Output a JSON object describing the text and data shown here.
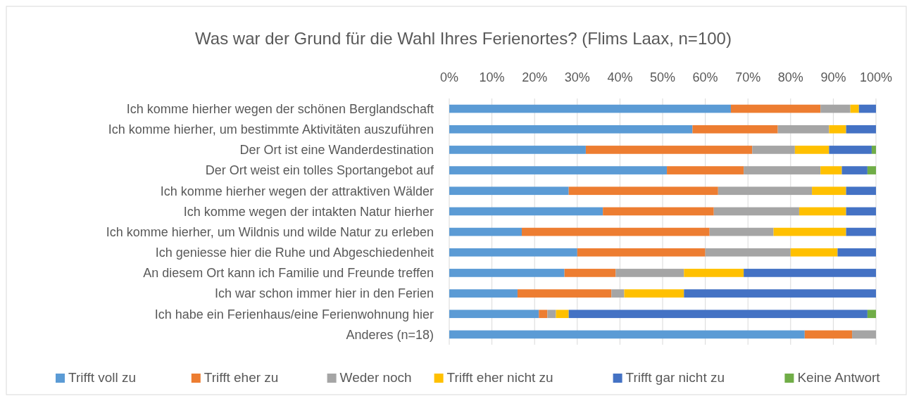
{
  "chart_data": {
    "type": "bar",
    "orientation": "horizontal",
    "stacked": true,
    "title": "Was war der Grund für die Wahl Ihres Ferienortes? (Flims Laax, n=100)",
    "categories": [
      "Ich komme hierher wegen der schönen Berglandschaft",
      "Ich komme hierher, um bestimmte Aktivitäten auszuführen",
      "Der Ort ist eine Wanderdestination",
      "Der Ort weist ein tolles Sportangebot auf",
      "Ich komme hierher wegen der attraktiven Wälder",
      "Ich komme wegen der intakten Natur hierher",
      "Ich komme hierher, um Wildnis und wilde Natur zu erleben",
      "Ich geniesse hier die Ruhe und Abgeschiedenheit",
      "An diesem Ort kann ich Familie und Freunde treffen",
      "Ich war schon immer hier in den Ferien",
      "Ich habe ein Ferienhaus/eine Ferienwohnung hier",
      "Anderes (n=18)"
    ],
    "series": [
      {
        "name": "Trifft voll zu",
        "color": "#5b9bd5",
        "values": [
          66,
          57,
          32,
          51,
          28,
          36,
          17,
          30,
          27,
          16,
          21,
          83.3
        ]
      },
      {
        "name": "Trifft eher zu",
        "color": "#ed7d31",
        "values": [
          21,
          20,
          39,
          18,
          35,
          26,
          44,
          30,
          12,
          22,
          2,
          11.1
        ]
      },
      {
        "name": "Weder noch",
        "color": "#a5a5a5",
        "values": [
          7,
          12,
          10,
          18,
          22,
          20,
          15,
          20,
          16,
          3,
          2,
          5.6
        ]
      },
      {
        "name": "Trifft eher nicht zu",
        "color": "#ffc000",
        "values": [
          2,
          4,
          8,
          5,
          8,
          11,
          17,
          11,
          14,
          14,
          3,
          0
        ]
      },
      {
        "name": "Trifft gar nicht zu",
        "color": "#4472c4",
        "values": [
          4,
          7,
          10,
          6,
          7,
          7,
          7,
          9,
          31,
          45,
          70,
          0
        ]
      },
      {
        "name": "Keine Antwort",
        "color": "#70ad47",
        "values": [
          0,
          0,
          1,
          2,
          0,
          0,
          0,
          0,
          0,
          0,
          2,
          0
        ]
      }
    ],
    "xlim": [
      0,
      100
    ],
    "xticks": [
      {
        "value": 0,
        "label": "0%"
      },
      {
        "value": 10,
        "label": "10%"
      },
      {
        "value": 20,
        "label": "20%"
      },
      {
        "value": 30,
        "label": "30%"
      },
      {
        "value": 40,
        "label": "40%"
      },
      {
        "value": 50,
        "label": "50%"
      },
      {
        "value": 60,
        "label": "60%"
      },
      {
        "value": 70,
        "label": "70%"
      },
      {
        "value": 80,
        "label": "80%"
      },
      {
        "value": 90,
        "label": "90%"
      },
      {
        "value": 100,
        "label": "100%"
      }
    ],
    "grid": "x",
    "legend": "bottom"
  }
}
